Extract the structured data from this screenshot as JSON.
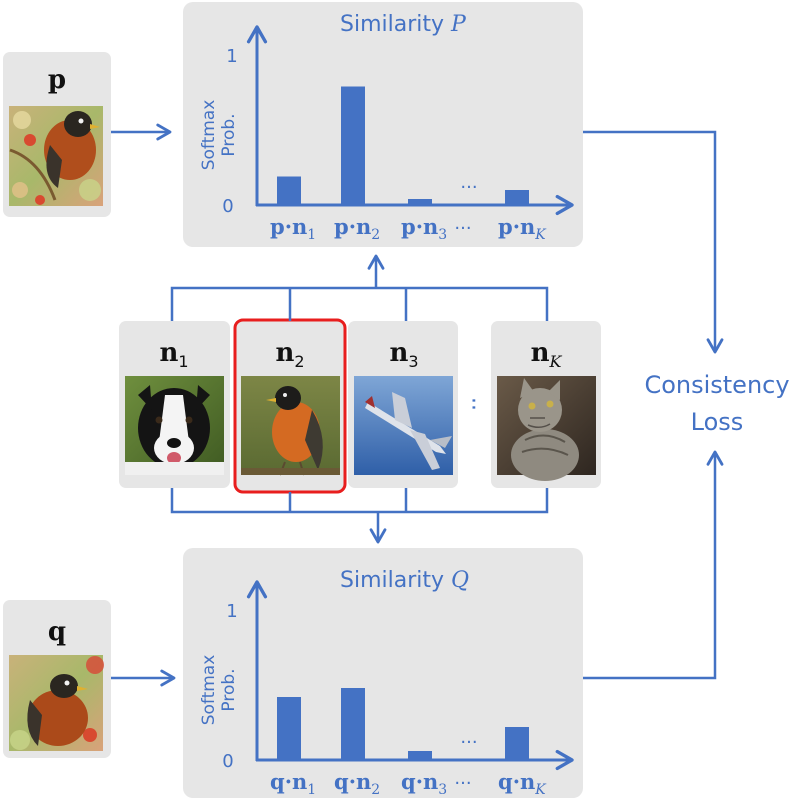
{
  "colors": {
    "accent": "#4472c4",
    "panel": "#e6e6e6",
    "highlight": "#e81e1e",
    "text_dark": "#111111"
  },
  "top_panel": {
    "title_text": "Similarity ",
    "title_symbol": "P",
    "y_axis_label_line1": "Softmax",
    "y_axis_label_line2": "Prob.",
    "y_tick_top": "1",
    "y_tick_bottom": "0",
    "x_ellipsis": "···",
    "bar_ellipsis": "···"
  },
  "bottom_panel": {
    "title_text": "Similarity ",
    "title_symbol": "Q",
    "y_axis_label_line1": "Softmax",
    "y_axis_label_line2": "Prob.",
    "y_tick_top": "1",
    "y_tick_bottom": "0",
    "x_ellipsis": "···",
    "bar_ellipsis": "···"
  },
  "anchor_p": {
    "label": "p",
    "image": "robin-photo"
  },
  "anchor_q": {
    "label": "q",
    "image": "robin-photo"
  },
  "negatives": [
    {
      "base": "n",
      "sub": "1",
      "image": "border-collie-dog-photo",
      "highlighted": false
    },
    {
      "base": "n",
      "sub": "2",
      "image": "robin-photo",
      "highlighted": true
    },
    {
      "base": "n",
      "sub": "3",
      "image": "fighter-jet-photo",
      "highlighted": false
    },
    {
      "base": "n",
      "sub": "K",
      "image": "tabby-cat-photo",
      "highlighted": false
    }
  ],
  "negatives_ellipsis": "··",
  "loss": {
    "line1": "Consistency",
    "line2": "Loss"
  },
  "chart_data": [
    {
      "type": "bar",
      "title": "Similarity P",
      "ylabel": "Softmax Prob.",
      "ylim": [
        0,
        1
      ],
      "categories": [
        "p·n1",
        "p·n2",
        "p·n3",
        "p·nK"
      ],
      "category_parts": [
        {
          "a": "p",
          "b": "n",
          "sub": "1"
        },
        {
          "a": "p",
          "b": "n",
          "sub": "2"
        },
        {
          "a": "p",
          "b": "n",
          "sub": "3"
        },
        {
          "a": "p",
          "b": "n",
          "sub": "K"
        }
      ],
      "values": [
        0.19,
        0.79,
        0.04,
        0.1
      ]
    },
    {
      "type": "bar",
      "title": "Similarity Q",
      "ylabel": "Softmax Prob.",
      "ylim": [
        0,
        1
      ],
      "categories": [
        "q·n1",
        "q·n2",
        "q·n3",
        "q·nK"
      ],
      "category_parts": [
        {
          "a": "q",
          "b": "n",
          "sub": "1"
        },
        {
          "a": "q",
          "b": "n",
          "sub": "2"
        },
        {
          "a": "q",
          "b": "n",
          "sub": "3"
        },
        {
          "a": "q",
          "b": "n",
          "sub": "K"
        }
      ],
      "values": [
        0.42,
        0.48,
        0.06,
        0.22
      ]
    }
  ]
}
